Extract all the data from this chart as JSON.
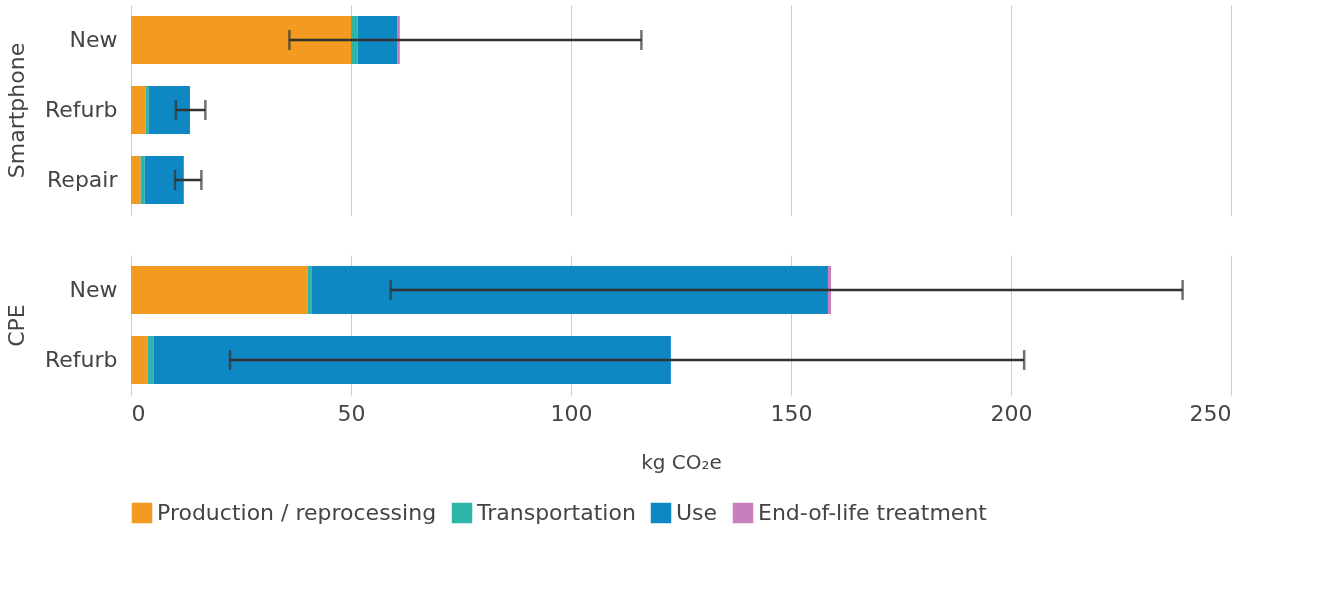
{
  "chart_data": [
    {
      "type": "bar",
      "orientation": "horizontal",
      "stacked": true,
      "ylabel": "Smartphone",
      "categories": [
        "New",
        "Refurb",
        "Repair"
      ],
      "series": [
        {
          "name": "Production / reprocessing",
          "color": "#f29a21",
          "values": [
            50,
            3.3,
            2.2
          ]
        },
        {
          "name": "Transportation",
          "color": "#2cb5a8",
          "values": [
            1.5,
            0.7,
            0.9
          ]
        },
        {
          "name": "Use",
          "color": "#0e88c2",
          "values": [
            9.1,
            9.4,
            8.9
          ],
          "errors": [
            [
              36,
              116
            ],
            [
              10.2,
              16.9
            ],
            [
              10,
              16
            ]
          ]
        },
        {
          "name": "End-of-life treatment",
          "color": "#c77fbd",
          "values": [
            0.5,
            null,
            null
          ]
        }
      ],
      "xlim": [
        0,
        250
      ],
      "xticks": [
        0,
        50,
        100,
        150,
        200,
        250
      ],
      "grid": "x",
      "tick_labels": "y",
      "legend": "bottom"
    },
    {
      "type": "bar",
      "orientation": "horizontal",
      "stacked": true,
      "ylabel": "CPE",
      "xlabel": "kg  CO₂e",
      "categories": [
        "New",
        "Refurb"
      ],
      "series": [
        {
          "name": "Production / reprocessing",
          "color": "#f29a21",
          "values": [
            40.1,
            3.8
          ]
        },
        {
          "name": "Transportation",
          "color": "#2cb5a8",
          "values": [
            0.9,
            1.3
          ]
        },
        {
          "name": "Use",
          "color": "#0e88c2",
          "values": [
            117.4,
            117.6
          ],
          "errors": [
            [
              59,
              239
            ],
            [
              22.5,
              203
            ]
          ]
        },
        {
          "name": "End-of-life treatment",
          "color": "#c77fbd",
          "values": [
            0.7,
            null
          ]
        }
      ],
      "xlim": [
        0,
        250
      ],
      "xticks": [
        0,
        50,
        100,
        150,
        200,
        250
      ],
      "grid": "x",
      "legend": "bottom"
    }
  ]
}
